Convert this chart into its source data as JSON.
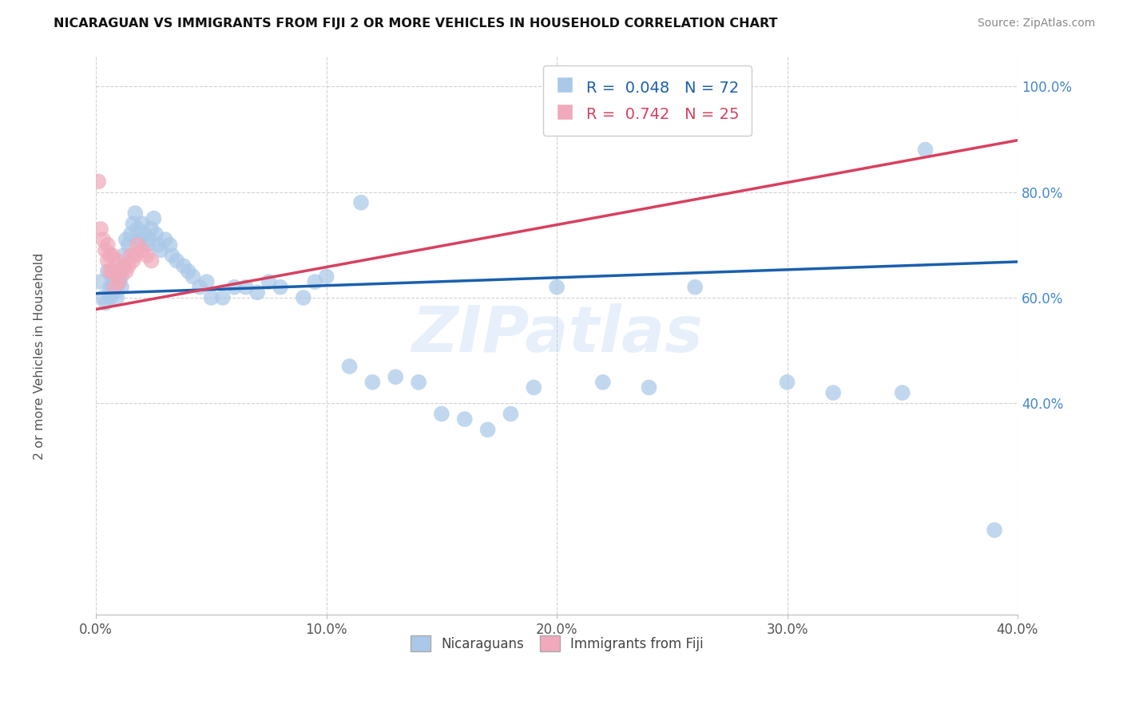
{
  "title": "NICARAGUAN VS IMMIGRANTS FROM FIJI 2 OR MORE VEHICLES IN HOUSEHOLD CORRELATION CHART",
  "source": "Source: ZipAtlas.com",
  "ylabel": "2 or more Vehicles in Household",
  "legend_label_blue": "Nicaraguans",
  "legend_label_pink": "Immigrants from Fiji",
  "blue_color": "#aac8e8",
  "pink_color": "#f0aabb",
  "blue_line_color": "#1a5fad",
  "pink_line_color": "#d84060",
  "watermark": "ZIPatlas",
  "xmin": 0.0,
  "xmax": 0.4,
  "ymin": 0.0,
  "ymax": 1.06,
  "blue_R": 0.048,
  "blue_N": 72,
  "pink_R": 0.742,
  "pink_N": 25,
  "yticks": [
    0.4,
    0.6,
    0.8,
    1.0
  ],
  "xticks": [
    0.0,
    0.1,
    0.2,
    0.3,
    0.4
  ],
  "blue_x": [
    0.002,
    0.003,
    0.004,
    0.005,
    0.006,
    0.006,
    0.007,
    0.007,
    0.008,
    0.008,
    0.009,
    0.009,
    0.01,
    0.01,
    0.011,
    0.011,
    0.012,
    0.012,
    0.013,
    0.014,
    0.015,
    0.016,
    0.017,
    0.018,
    0.019,
    0.02,
    0.021,
    0.022,
    0.023,
    0.024,
    0.025,
    0.026,
    0.027,
    0.028,
    0.03,
    0.032,
    0.033,
    0.035,
    0.038,
    0.04,
    0.042,
    0.045,
    0.048,
    0.05,
    0.055,
    0.06,
    0.065,
    0.07,
    0.075,
    0.08,
    0.09,
    0.095,
    0.1,
    0.11,
    0.115,
    0.12,
    0.13,
    0.14,
    0.15,
    0.16,
    0.17,
    0.18,
    0.19,
    0.2,
    0.22,
    0.24,
    0.26,
    0.3,
    0.32,
    0.35,
    0.36,
    0.39
  ],
  "blue_y": [
    0.63,
    0.6,
    0.59,
    0.65,
    0.62,
    0.6,
    0.62,
    0.64,
    0.61,
    0.63,
    0.6,
    0.62,
    0.65,
    0.63,
    0.62,
    0.64,
    0.66,
    0.68,
    0.71,
    0.7,
    0.72,
    0.74,
    0.76,
    0.73,
    0.71,
    0.74,
    0.72,
    0.7,
    0.71,
    0.73,
    0.75,
    0.72,
    0.7,
    0.69,
    0.71,
    0.7,
    0.68,
    0.67,
    0.66,
    0.65,
    0.64,
    0.62,
    0.63,
    0.6,
    0.6,
    0.62,
    0.62,
    0.61,
    0.63,
    0.62,
    0.6,
    0.63,
    0.64,
    0.47,
    0.78,
    0.44,
    0.45,
    0.44,
    0.38,
    0.37,
    0.35,
    0.38,
    0.43,
    0.62,
    0.44,
    0.43,
    0.62,
    0.44,
    0.42,
    0.42,
    0.88,
    0.16
  ],
  "pink_x": [
    0.001,
    0.002,
    0.003,
    0.004,
    0.005,
    0.005,
    0.006,
    0.006,
    0.007,
    0.007,
    0.008,
    0.009,
    0.009,
    0.01,
    0.011,
    0.012,
    0.013,
    0.014,
    0.015,
    0.016,
    0.017,
    0.018,
    0.02,
    0.022,
    0.024
  ],
  "pink_y": [
    0.82,
    0.73,
    0.71,
    0.69,
    0.67,
    0.7,
    0.65,
    0.68,
    0.65,
    0.68,
    0.62,
    0.64,
    0.67,
    0.63,
    0.65,
    0.66,
    0.65,
    0.66,
    0.68,
    0.67,
    0.68,
    0.7,
    0.69,
    0.68,
    0.67
  ],
  "blue_line_x0": 0.0,
  "blue_line_x1": 0.4,
  "blue_line_y0": 0.608,
  "blue_line_y1": 0.668,
  "pink_line_x0": 0.0,
  "pink_line_x1": 0.4,
  "pink_line_y0": 0.578,
  "pink_line_y1": 0.898
}
